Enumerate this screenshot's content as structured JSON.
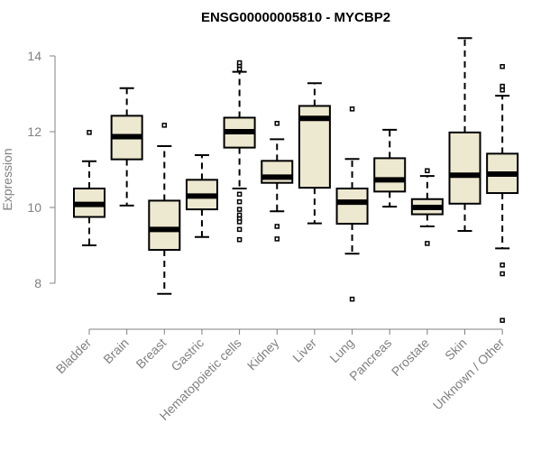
{
  "chart_data": {
    "type": "boxplot",
    "title": "ENSG00000005810 - MYCBP2",
    "xlabel": "",
    "ylabel": "Expression",
    "ylim": [
      6.85,
      14.55
    ],
    "yticks": [
      8,
      10,
      12,
      14
    ],
    "grid": false,
    "legend": "none",
    "box_fill": "#ede8d0",
    "box_stroke": "#000000",
    "axis_color": "#808080",
    "categories": [
      "Bladder",
      "Brain",
      "Breast",
      "Gastric",
      "Hematopoietic cells",
      "Kidney",
      "Liver",
      "Lung",
      "Pancreas",
      "Prostate",
      "Skin",
      "Unknown / Other"
    ],
    "series": [
      {
        "values": [
          {
            "whisker_low": 9.0,
            "q1": 9.75,
            "median": 10.08,
            "q3": 10.5,
            "whisker_high": 11.22,
            "outliers": [
              11.98
            ]
          },
          {
            "whisker_low": 10.05,
            "q1": 11.27,
            "median": 11.87,
            "q3": 12.42,
            "whisker_high": 13.15,
            "outliers": []
          },
          {
            "whisker_low": 7.72,
            "q1": 8.88,
            "median": 9.42,
            "q3": 10.18,
            "whisker_high": 11.62,
            "outliers": [
              12.17
            ]
          },
          {
            "whisker_low": 9.22,
            "q1": 9.95,
            "median": 10.3,
            "q3": 10.73,
            "whisker_high": 11.38,
            "outliers": []
          },
          {
            "whisker_low": 10.5,
            "q1": 11.58,
            "median": 12.0,
            "q3": 12.37,
            "whisker_high": 13.58,
            "outliers": [
              13.65,
              13.75,
              13.82,
              10.35,
              10.15,
              9.95,
              9.8,
              9.7,
              9.62,
              9.42,
              9.15
            ]
          },
          {
            "whisker_low": 9.9,
            "q1": 10.65,
            "median": 10.8,
            "q3": 11.23,
            "whisker_high": 11.8,
            "outliers": [
              12.22,
              9.5,
              9.17
            ]
          },
          {
            "whisker_low": 9.58,
            "q1": 10.52,
            "median": 12.35,
            "q3": 12.68,
            "whisker_high": 13.28,
            "outliers": []
          },
          {
            "whisker_low": 8.78,
            "q1": 9.57,
            "median": 10.14,
            "q3": 10.5,
            "whisker_high": 11.28,
            "outliers": [
              12.6,
              7.58
            ]
          },
          {
            "whisker_low": 10.02,
            "q1": 10.42,
            "median": 10.73,
            "q3": 11.3,
            "whisker_high": 12.05,
            "outliers": []
          },
          {
            "whisker_low": 9.5,
            "q1": 9.82,
            "median": 10.0,
            "q3": 10.22,
            "whisker_high": 10.83,
            "outliers": [
              10.97,
              9.05
            ]
          },
          {
            "whisker_low": 9.38,
            "q1": 10.1,
            "median": 10.85,
            "q3": 11.98,
            "whisker_high": 14.47,
            "outliers": []
          },
          {
            "whisker_low": 8.92,
            "q1": 10.38,
            "median": 10.88,
            "q3": 11.42,
            "whisker_high": 12.95,
            "outliers": [
              13.72,
              13.2,
              13.1,
              8.48,
              8.25,
              7.02
            ]
          }
        ]
      }
    ]
  }
}
